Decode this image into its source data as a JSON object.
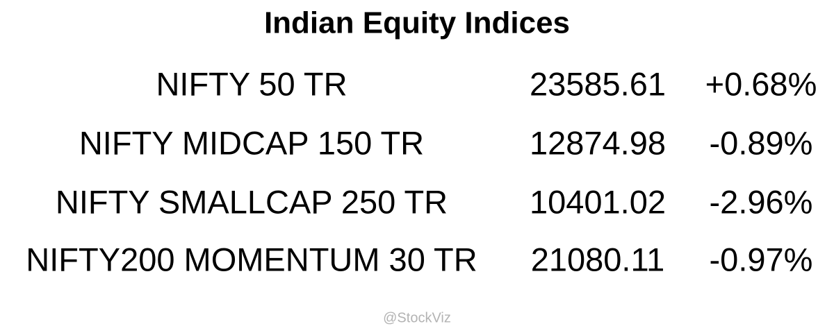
{
  "header": {
    "title": "Indian Equity Indices"
  },
  "table": {
    "rows": [
      [
        "NIFTY 50 TR",
        "23585.61",
        "+0.68%"
      ],
      [
        "NIFTY MIDCAP 150 TR",
        "12874.98",
        "-0.89%"
      ],
      [
        "NIFTY SMALLCAP 250 TR",
        "10401.02",
        "-2.96%"
      ],
      [
        "NIFTY200 MOMENTUM 30 TR",
        "21080.11",
        "-0.97%"
      ]
    ]
  },
  "footer": {
    "text": "@StockViz"
  }
}
